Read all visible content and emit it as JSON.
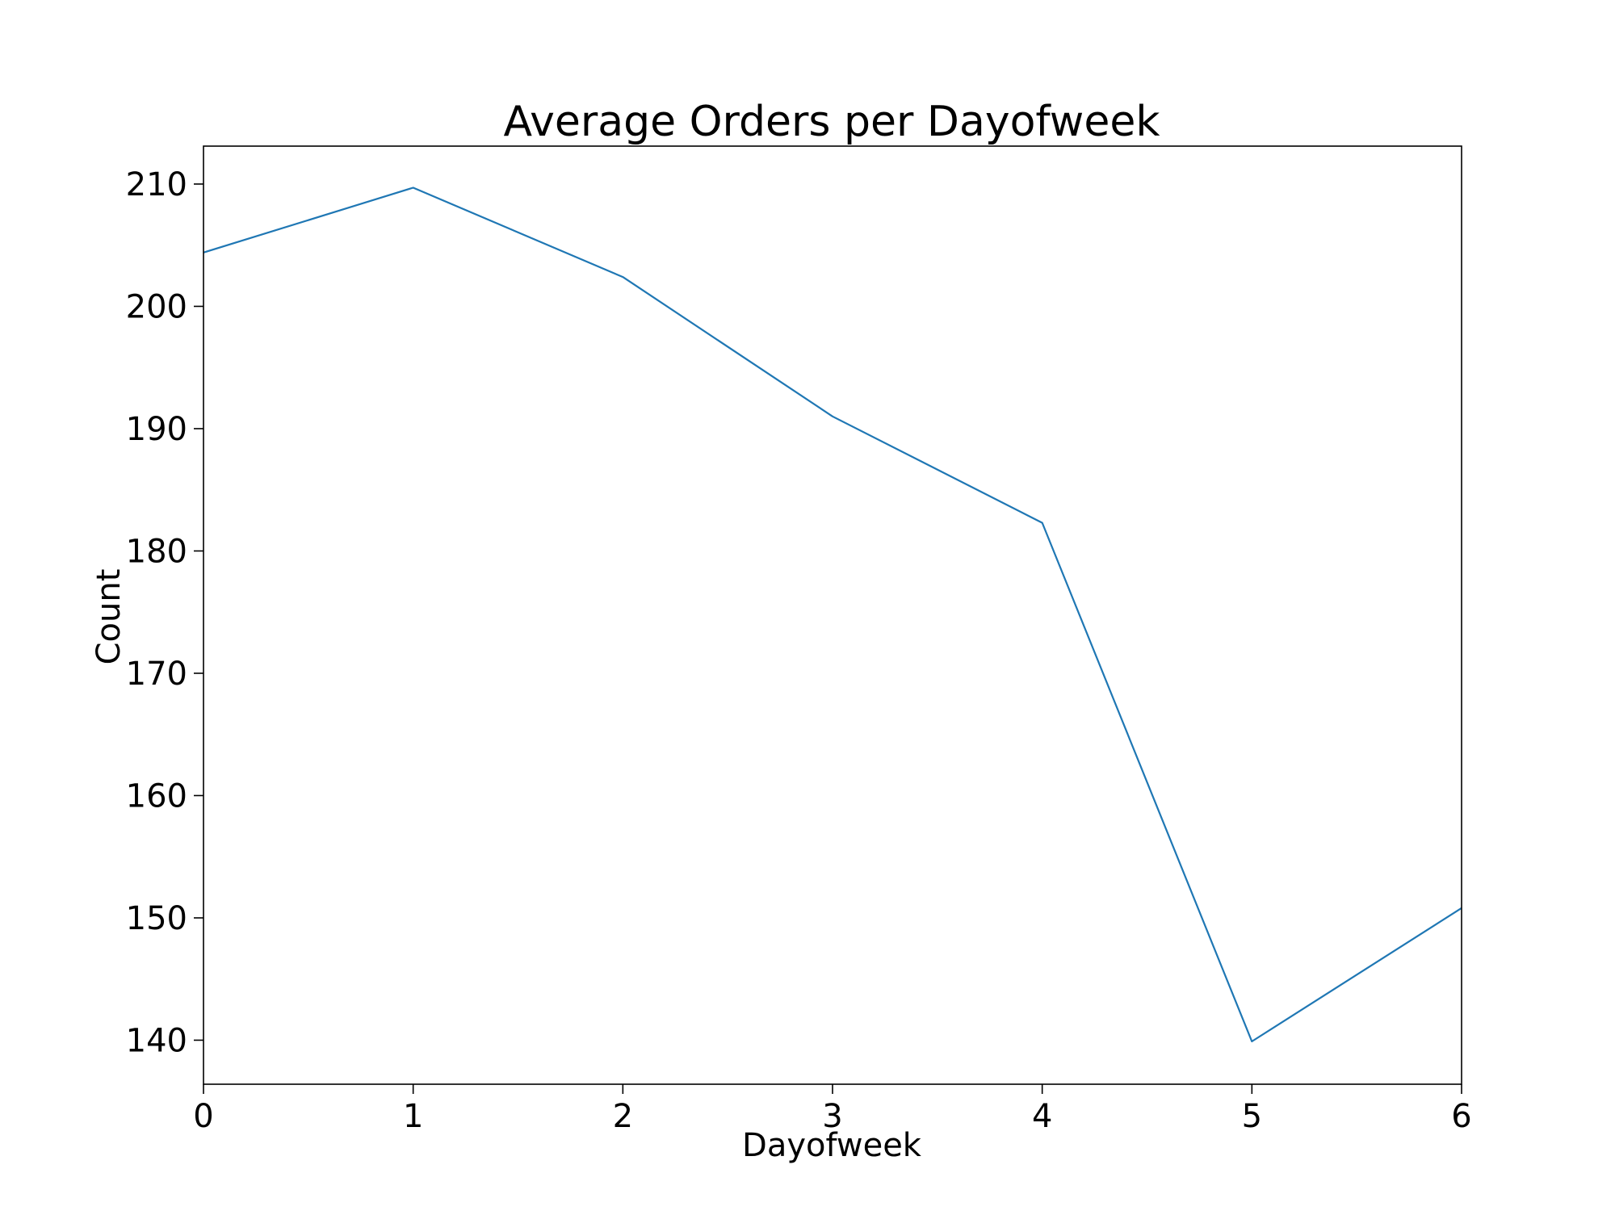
{
  "chart_data": {
    "type": "line",
    "title": "Average Orders per Dayofweek",
    "xlabel": "Dayofweek",
    "ylabel": "Count",
    "xlim": [
      0,
      6
    ],
    "ylim": [
      136.4,
      213.1
    ],
    "x_ticks": [
      "0",
      "1",
      "2",
      "3",
      "4",
      "5",
      "6"
    ],
    "y_ticks": [
      "140",
      "150",
      "160",
      "170",
      "180",
      "190",
      "200",
      "210"
    ],
    "grid": false,
    "legend": "none",
    "colors": {
      "line": "#1f77b4",
      "axes": "#000000"
    },
    "series": [
      {
        "x": [
          0,
          1,
          2,
          3,
          4,
          5,
          6
        ],
        "values": [
          204.4,
          209.7,
          202.4,
          191.0,
          182.3,
          139.9,
          150.8
        ]
      }
    ]
  }
}
